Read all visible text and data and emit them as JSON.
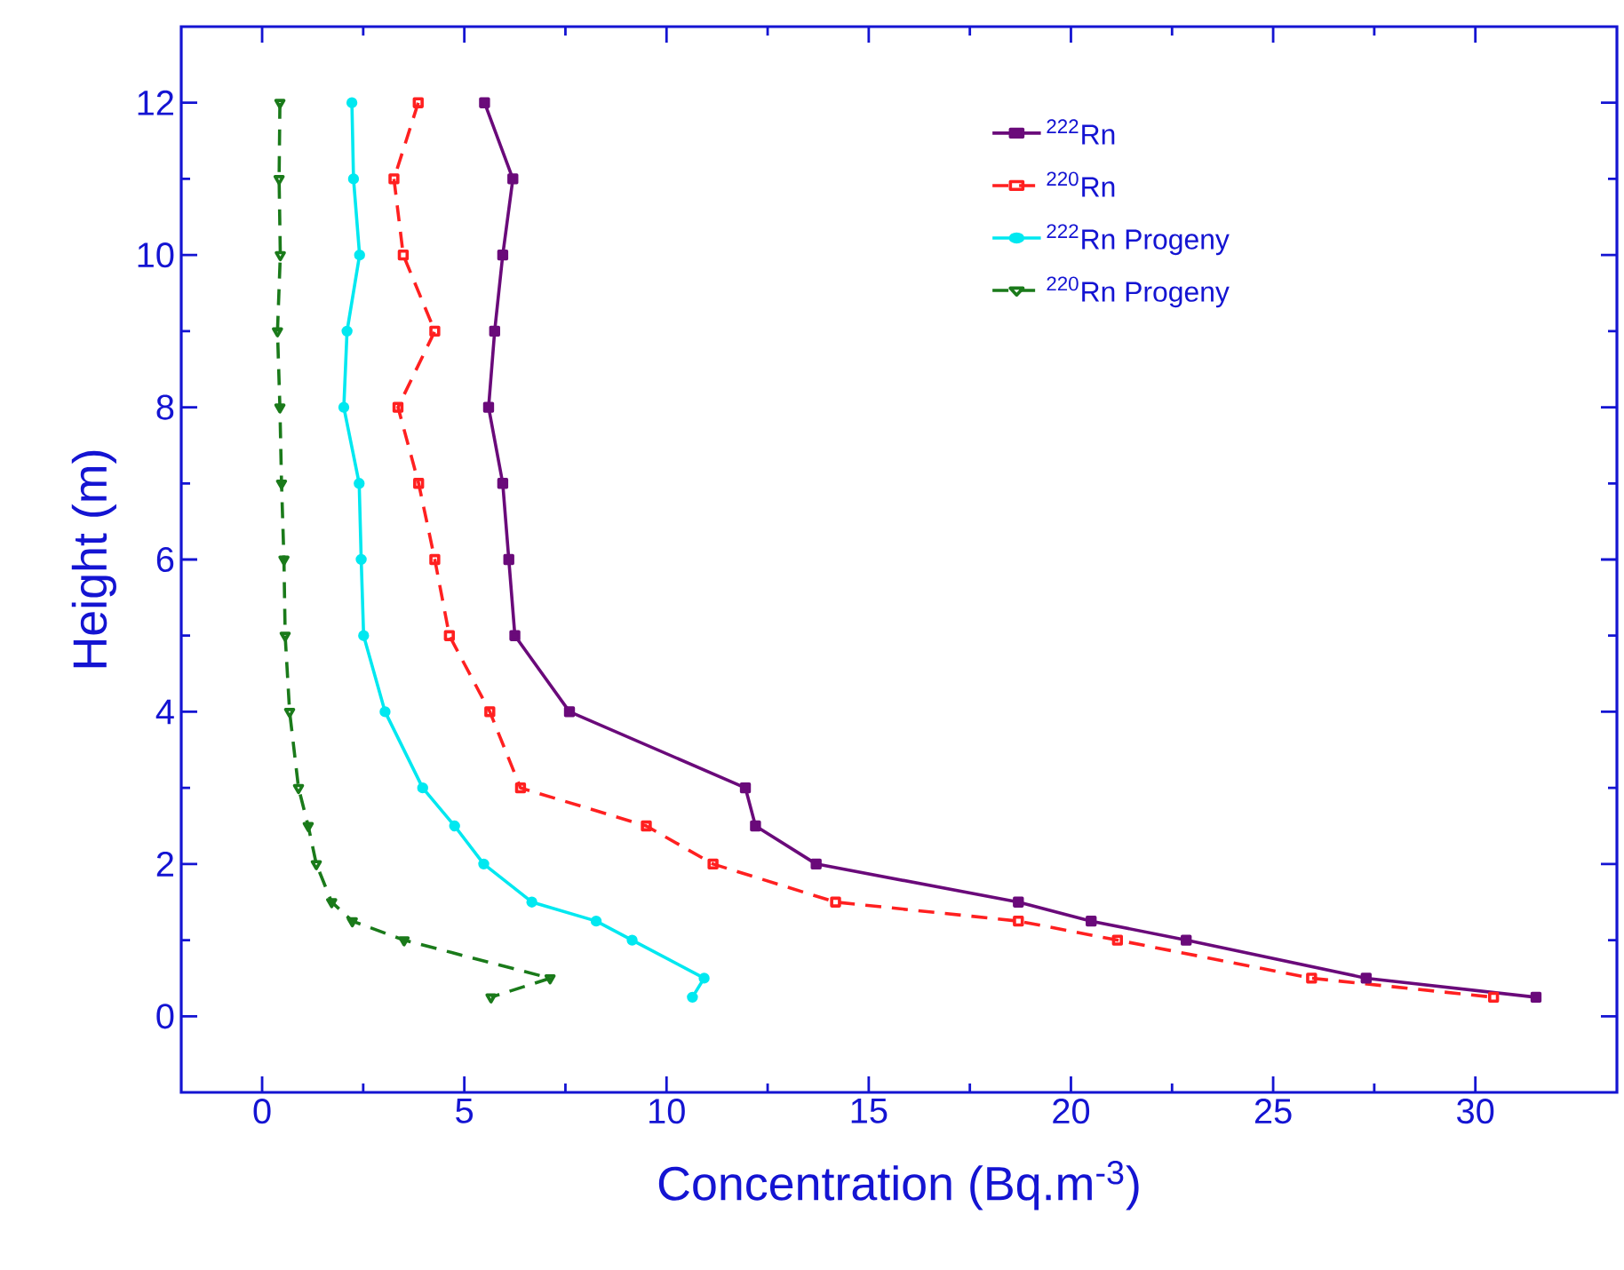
{
  "chart_data": {
    "type": "line",
    "xlabel": "Concentration (Bq.m$^{-3}$)",
    "ylabel": "Height (m)",
    "xlim": [
      -2,
      33.5
    ],
    "ylim": [
      -1,
      13
    ],
    "xticks": [
      0,
      5,
      10,
      15,
      20,
      25,
      30
    ],
    "yticks": [
      0,
      2,
      4,
      6,
      8,
      10,
      12
    ],
    "grid": false,
    "legend": "top right",
    "series": [
      {
        "name": "$^{222}$Rn",
        "color": "#6a0a7a",
        "marker": "square",
        "line_style": "solid",
        "x": [
          5.5,
          6.2,
          5.95,
          5.75,
          5.6,
          5.95,
          6.1,
          6.25,
          7.6,
          11.95,
          12.2,
          13.7,
          18.7,
          20.5,
          22.85,
          27.3,
          31.5
        ],
        "values": [
          12,
          11,
          10,
          9,
          8,
          7,
          6,
          5,
          4,
          3,
          2.5,
          2,
          1.5,
          1.25,
          1,
          0.5,
          0.25
        ]
      },
      {
        "name": "$^{220}$Rn",
        "color": "#ff2020",
        "marker": "square",
        "line_style": "dashed",
        "x": [
          3.86,
          3.26,
          3.49,
          4.27,
          3.36,
          3.87,
          4.27,
          4.63,
          5.63,
          6.39,
          9.5,
          11.15,
          14.18,
          18.7,
          21.15,
          25.95,
          30.45
        ],
        "values": [
          12,
          11,
          10,
          9,
          8,
          7,
          6,
          5,
          4,
          3,
          2.5,
          2,
          1.5,
          1.25,
          1,
          0.5,
          0.25
        ]
      },
      {
        "name": "$^{222}$Rn Progeny",
        "color": "#00e8f0",
        "marker": "circle",
        "line_style": "solid",
        "x": [
          2.22,
          2.26,
          2.41,
          2.1,
          2.02,
          2.4,
          2.45,
          2.51,
          3.04,
          3.97,
          4.76,
          5.48,
          6.67,
          8.26,
          9.15,
          10.93,
          10.64
        ],
        "values": [
          12,
          11,
          10,
          9,
          8,
          7,
          6,
          5,
          4,
          3,
          2.5,
          2,
          1.5,
          1.25,
          1,
          0.5,
          0.25
        ]
      },
      {
        "name": "$^{220}$Rn Progeny",
        "color": "#1a7a1a",
        "marker": "triangle",
        "line_style": "dashed",
        "x": [
          0.44,
          0.42,
          0.45,
          0.38,
          0.44,
          0.48,
          0.54,
          0.57,
          0.68,
          0.9,
          1.14,
          1.34,
          1.72,
          2.23,
          3.51,
          7.12,
          5.66
        ],
        "values": [
          12,
          11,
          10,
          9,
          8,
          7,
          6,
          5,
          4,
          3,
          2.5,
          2,
          1.5,
          1.25,
          1,
          0.5,
          0.25
        ]
      }
    ]
  }
}
